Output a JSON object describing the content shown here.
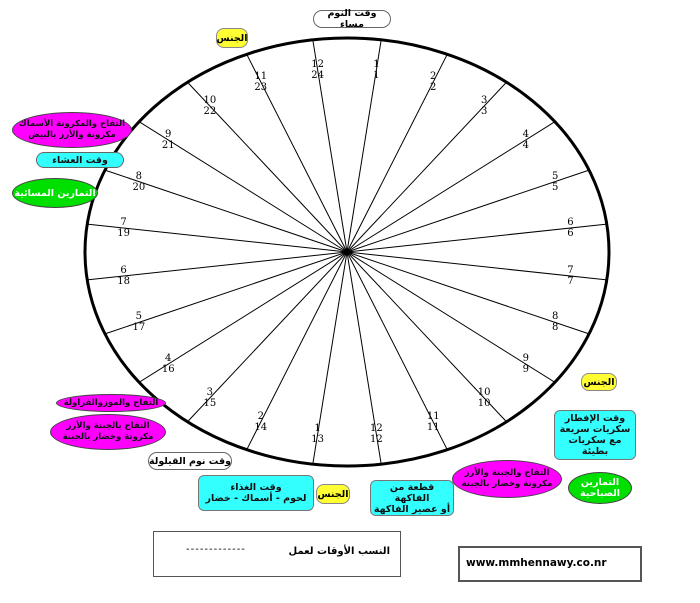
{
  "title": "وقت النوم مساء",
  "hours_day": [
    "1",
    "2",
    "3",
    "4",
    "5",
    "6",
    "7",
    "8",
    "9",
    "10",
    "11",
    "12"
  ],
  "hours_24": [
    "13",
    "14",
    "15",
    "16",
    "17",
    "18",
    "19",
    "20",
    "21",
    "22",
    "23",
    "24"
  ],
  "hours_am": [
    "1",
    "2",
    "3",
    "4",
    "5",
    "6",
    "7",
    "8",
    "9",
    "10",
    "11",
    "12"
  ],
  "labels": {
    "sex_top": "الجنس",
    "sex_right": "الجنس",
    "sex_bottom": "الجنس",
    "appetizer_snack_top": "التفاح والمكرونة الأسماك\nمكرونة والأرز بالبيض",
    "dinner_time": "وقت العشاء",
    "morning_swim": "التمارين المسائية",
    "afternoon_snack_a": "التفاح والموزوالفراولة",
    "afternoon_snack_b": "التفاح بالجبنة والأرز\nمكرونة وخضار بالجبنة",
    "nap_time": "وقت نوم القيلولة",
    "lunch_time": "وقت الغذاء\nلحوم - أسماك - خضار",
    "fruit_piece": "قطعة من الفاكهة\nأو عصير الفاكهة",
    "snack_right": "التفاح والجبنة والأرز\nمكرونة وخضار بالجبنة",
    "morning_exercise": "التمارين\nالصباحية",
    "breakfast_time": "وقت الإفطار\nسكريات سريعة\nمع سكريات بطيئة",
    "legend_label": "النسب الأوقات لعمل",
    "legend_line": "-------------",
    "website": "www.mmhennawy.co.nr"
  },
  "colors": {
    "yellow": "#ffff33",
    "magenta": "#ff00ff",
    "cyan": "#33ffff",
    "green": "#00e000"
  }
}
